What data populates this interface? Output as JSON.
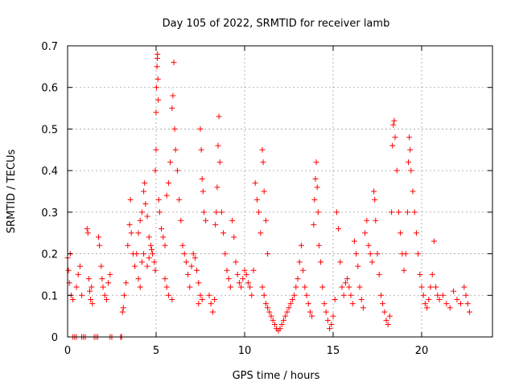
{
  "chart_data": {
    "type": "scatter",
    "title": "Day 105 of 2022, SRMTID for receiver lamb",
    "xlabel": "GPS time / hours",
    "ylabel": "SRMTID / TECUs",
    "xlim": [
      0,
      24
    ],
    "ylim": [
      0,
      0.7
    ],
    "xticks": [
      0,
      5,
      10,
      15,
      20
    ],
    "xtick_labels": [
      "0",
      "5",
      "10",
      "15",
      "20"
    ],
    "yticks": [
      0,
      0.1,
      0.2,
      0.3,
      0.4,
      0.5,
      0.6,
      0.7
    ],
    "ytick_labels": [
      "0",
      "0.1",
      "0.2",
      "0.3",
      "0.4",
      "0.5",
      "0.6",
      "0.7"
    ],
    "grid": true,
    "marker": "+",
    "color": "#ff0000",
    "series": [
      {
        "name": "SRMTID",
        "points": [
          [
            0.0,
            0.19
          ],
          [
            0.05,
            0.16
          ],
          [
            0.1,
            0.13
          ],
          [
            0.15,
            0.2
          ],
          [
            0.2,
            0.1
          ],
          [
            0.3,
            0.09
          ],
          [
            0.5,
            0.12
          ],
          [
            0.6,
            0.15
          ],
          [
            0.7,
            0.17
          ],
          [
            0.8,
            0.1
          ],
          [
            0.3,
            0.0
          ],
          [
            0.4,
            0.0
          ],
          [
            0.5,
            0.0
          ],
          [
            0.8,
            0.0
          ],
          [
            0.9,
            0.0
          ],
          [
            1.0,
            0.0
          ],
          [
            1.5,
            0.0
          ],
          [
            1.6,
            0.0
          ],
          [
            1.7,
            0.0
          ],
          [
            2.4,
            0.0
          ],
          [
            2.5,
            0.0
          ],
          [
            3.0,
            0.0
          ],
          [
            3.05,
            0.0
          ],
          [
            1.1,
            0.26
          ],
          [
            1.15,
            0.25
          ],
          [
            1.2,
            0.14
          ],
          [
            1.25,
            0.11
          ],
          [
            1.3,
            0.09
          ],
          [
            1.35,
            0.12
          ],
          [
            1.4,
            0.08
          ],
          [
            1.75,
            0.24
          ],
          [
            1.8,
            0.22
          ],
          [
            1.9,
            0.17
          ],
          [
            1.95,
            0.14
          ],
          [
            2.0,
            0.12
          ],
          [
            2.1,
            0.1
          ],
          [
            2.2,
            0.09
          ],
          [
            2.3,
            0.13
          ],
          [
            2.4,
            0.15
          ],
          [
            3.1,
            0.06
          ],
          [
            3.15,
            0.07
          ],
          [
            3.2,
            0.1
          ],
          [
            3.3,
            0.13
          ],
          [
            3.4,
            0.22
          ],
          [
            3.5,
            0.27
          ],
          [
            3.55,
            0.33
          ],
          [
            3.6,
            0.25
          ],
          [
            3.7,
            0.2
          ],
          [
            3.8,
            0.17
          ],
          [
            3.9,
            0.2
          ],
          [
            4.0,
            0.25
          ],
          [
            4.1,
            0.28
          ],
          [
            4.2,
            0.3
          ],
          [
            4.3,
            0.35
          ],
          [
            4.35,
            0.37
          ],
          [
            4.4,
            0.32
          ],
          [
            4.5,
            0.29
          ],
          [
            4.6,
            0.24
          ],
          [
            4.7,
            0.22
          ],
          [
            4.75,
            0.21
          ],
          [
            4.8,
            0.2
          ],
          [
            4.9,
            0.18
          ],
          [
            4.95,
            0.16
          ],
          [
            4.2,
            0.18
          ],
          [
            4.3,
            0.2
          ],
          [
            4.5,
            0.17
          ],
          [
            4.6,
            0.19
          ],
          [
            4.0,
            0.14
          ],
          [
            4.1,
            0.12
          ],
          [
            4.95,
            0.4
          ],
          [
            5.0,
            0.45
          ],
          [
            5.0,
            0.54
          ],
          [
            5.02,
            0.6
          ],
          [
            5.05,
            0.65
          ],
          [
            5.07,
            0.67
          ],
          [
            5.08,
            0.68
          ],
          [
            5.1,
            0.62
          ],
          [
            5.12,
            0.57
          ],
          [
            5.15,
            0.33
          ],
          [
            5.2,
            0.3
          ],
          [
            5.3,
            0.26
          ],
          [
            5.4,
            0.24
          ],
          [
            5.5,
            0.22
          ],
          [
            5.6,
            0.34
          ],
          [
            5.7,
            0.37
          ],
          [
            5.8,
            0.42
          ],
          [
            5.9,
            0.55
          ],
          [
            5.95,
            0.58
          ],
          [
            6.0,
            0.66
          ],
          [
            6.05,
            0.5
          ],
          [
            6.1,
            0.45
          ],
          [
            6.2,
            0.4
          ],
          [
            6.3,
            0.33
          ],
          [
            6.4,
            0.28
          ],
          [
            5.5,
            0.14
          ],
          [
            5.6,
            0.12
          ],
          [
            5.7,
            0.1
          ],
          [
            5.9,
            0.09
          ],
          [
            6.5,
            0.22
          ],
          [
            6.6,
            0.2
          ],
          [
            6.7,
            0.18
          ],
          [
            6.8,
            0.15
          ],
          [
            6.9,
            0.12
          ],
          [
            7.0,
            0.17
          ],
          [
            7.1,
            0.2
          ],
          [
            7.2,
            0.19
          ],
          [
            7.3,
            0.16
          ],
          [
            7.4,
            0.13
          ],
          [
            7.5,
            0.5
          ],
          [
            7.55,
            0.45
          ],
          [
            7.6,
            0.38
          ],
          [
            7.65,
            0.35
          ],
          [
            7.7,
            0.3
          ],
          [
            7.8,
            0.28
          ],
          [
            7.5,
            0.1
          ],
          [
            7.6,
            0.09
          ],
          [
            7.4,
            0.08
          ],
          [
            8.0,
            0.1
          ],
          [
            8.1,
            0.08
          ],
          [
            8.2,
            0.06
          ],
          [
            8.3,
            0.09
          ],
          [
            8.35,
            0.27
          ],
          [
            8.4,
            0.3
          ],
          [
            8.45,
            0.36
          ],
          [
            8.5,
            0.46
          ],
          [
            8.55,
            0.53
          ],
          [
            8.6,
            0.42
          ],
          [
            8.7,
            0.3
          ],
          [
            8.8,
            0.25
          ],
          [
            8.9,
            0.2
          ],
          [
            9.0,
            0.16
          ],
          [
            9.1,
            0.14
          ],
          [
            9.2,
            0.12
          ],
          [
            9.3,
            0.28
          ],
          [
            9.4,
            0.24
          ],
          [
            9.5,
            0.18
          ],
          [
            9.6,
            0.15
          ],
          [
            9.7,
            0.13
          ],
          [
            9.8,
            0.12
          ],
          [
            9.9,
            0.14
          ],
          [
            10.0,
            0.16
          ],
          [
            10.1,
            0.15
          ],
          [
            10.2,
            0.13
          ],
          [
            10.3,
            0.12
          ],
          [
            10.4,
            0.1
          ],
          [
            10.5,
            0.16
          ],
          [
            10.6,
            0.37
          ],
          [
            10.7,
            0.33
          ],
          [
            10.8,
            0.3
          ],
          [
            10.9,
            0.25
          ],
          [
            11.0,
            0.45
          ],
          [
            11.05,
            0.42
          ],
          [
            11.1,
            0.35
          ],
          [
            11.2,
            0.28
          ],
          [
            11.3,
            0.2
          ],
          [
            11.0,
            0.12
          ],
          [
            11.1,
            0.1
          ],
          [
            11.2,
            0.08
          ],
          [
            11.3,
            0.07
          ],
          [
            11.4,
            0.06
          ],
          [
            11.5,
            0.05
          ],
          [
            11.6,
            0.04
          ],
          [
            11.7,
            0.03
          ],
          [
            11.8,
            0.02
          ],
          [
            11.9,
            0.015
          ],
          [
            12.0,
            0.02
          ],
          [
            12.1,
            0.03
          ],
          [
            12.2,
            0.04
          ],
          [
            12.3,
            0.05
          ],
          [
            12.4,
            0.06
          ],
          [
            12.5,
            0.07
          ],
          [
            12.6,
            0.08
          ],
          [
            12.7,
            0.09
          ],
          [
            12.8,
            0.1
          ],
          [
            12.9,
            0.12
          ],
          [
            13.0,
            0.14
          ],
          [
            13.1,
            0.18
          ],
          [
            13.2,
            0.22
          ],
          [
            13.3,
            0.16
          ],
          [
            13.4,
            0.12
          ],
          [
            13.5,
            0.1
          ],
          [
            13.6,
            0.08
          ],
          [
            13.7,
            0.06
          ],
          [
            13.8,
            0.05
          ],
          [
            13.9,
            0.27
          ],
          [
            13.95,
            0.33
          ],
          [
            14.0,
            0.38
          ],
          [
            14.05,
            0.42
          ],
          [
            14.1,
            0.36
          ],
          [
            14.15,
            0.3
          ],
          [
            14.2,
            0.22
          ],
          [
            14.3,
            0.18
          ],
          [
            14.4,
            0.12
          ],
          [
            14.5,
            0.08
          ],
          [
            14.6,
            0.06
          ],
          [
            14.7,
            0.04
          ],
          [
            14.8,
            0.02
          ],
          [
            14.9,
            0.03
          ],
          [
            15.0,
            0.05
          ],
          [
            15.1,
            0.09
          ],
          [
            15.2,
            0.3
          ],
          [
            15.3,
            0.26
          ],
          [
            15.4,
            0.18
          ],
          [
            15.5,
            0.12
          ],
          [
            15.6,
            0.1
          ],
          [
            15.7,
            0.13
          ],
          [
            15.8,
            0.14
          ],
          [
            15.9,
            0.12
          ],
          [
            16.0,
            0.1
          ],
          [
            16.1,
            0.08
          ],
          [
            16.2,
            0.23
          ],
          [
            16.3,
            0.2
          ],
          [
            16.4,
            0.17
          ],
          [
            16.5,
            0.12
          ],
          [
            16.6,
            0.09
          ],
          [
            16.7,
            0.07
          ],
          [
            16.8,
            0.25
          ],
          [
            16.9,
            0.28
          ],
          [
            17.0,
            0.22
          ],
          [
            17.1,
            0.2
          ],
          [
            17.2,
            0.18
          ],
          [
            17.3,
            0.35
          ],
          [
            17.35,
            0.33
          ],
          [
            17.4,
            0.28
          ],
          [
            17.5,
            0.2
          ],
          [
            17.6,
            0.15
          ],
          [
            17.7,
            0.1
          ],
          [
            17.8,
            0.08
          ],
          [
            17.9,
            0.06
          ],
          [
            18.0,
            0.04
          ],
          [
            18.1,
            0.03
          ],
          [
            18.2,
            0.05
          ],
          [
            18.3,
            0.3
          ],
          [
            18.35,
            0.46
          ],
          [
            18.4,
            0.51
          ],
          [
            18.45,
            0.52
          ],
          [
            18.5,
            0.48
          ],
          [
            18.6,
            0.4
          ],
          [
            18.7,
            0.3
          ],
          [
            18.8,
            0.25
          ],
          [
            18.9,
            0.2
          ],
          [
            19.0,
            0.16
          ],
          [
            19.1,
            0.2
          ],
          [
            19.2,
            0.3
          ],
          [
            19.25,
            0.42
          ],
          [
            19.3,
            0.48
          ],
          [
            19.35,
            0.45
          ],
          [
            19.4,
            0.4
          ],
          [
            19.5,
            0.35
          ],
          [
            19.6,
            0.3
          ],
          [
            19.7,
            0.25
          ],
          [
            19.8,
            0.2
          ],
          [
            19.9,
            0.15
          ],
          [
            20.0,
            0.12
          ],
          [
            20.1,
            0.1
          ],
          [
            20.2,
            0.08
          ],
          [
            20.3,
            0.07
          ],
          [
            20.4,
            0.09
          ],
          [
            20.5,
            0.12
          ],
          [
            20.6,
            0.15
          ],
          [
            20.7,
            0.23
          ],
          [
            20.8,
            0.12
          ],
          [
            20.9,
            0.1
          ],
          [
            21.0,
            0.09
          ],
          [
            21.2,
            0.1
          ],
          [
            21.4,
            0.08
          ],
          [
            21.6,
            0.07
          ],
          [
            21.8,
            0.11
          ],
          [
            22.0,
            0.09
          ],
          [
            22.2,
            0.08
          ],
          [
            22.4,
            0.12
          ],
          [
            22.5,
            0.1
          ],
          [
            22.6,
            0.08
          ],
          [
            22.7,
            0.06
          ]
        ]
      }
    ]
  }
}
